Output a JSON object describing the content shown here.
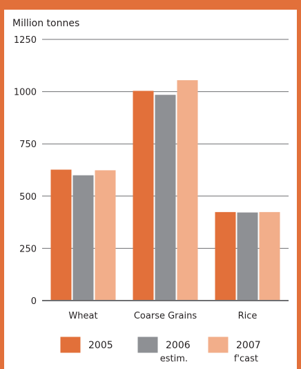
{
  "chart_data": {
    "type": "bar",
    "title": "",
    "ylabel": "Million tonnes",
    "xlabel": "",
    "categories": [
      "Wheat",
      "Coarse Grains",
      "Rice"
    ],
    "ylim": [
      0,
      1250
    ],
    "yticks": [
      0,
      250,
      500,
      750,
      1000,
      1250
    ],
    "grid": true,
    "legend_position": "bottom",
    "series": [
      {
        "name": "2005",
        "name_line2": "",
        "color": "#E2703A",
        "values": [
          625,
          1002,
          422
        ]
      },
      {
        "name": "2006",
        "name_line2": "estim.",
        "color": "#8E9094",
        "values": [
          598,
          983,
          420
        ]
      },
      {
        "name": "2007",
        "name_line2": "f'cast",
        "color": "#F2AE8A",
        "values": [
          622,
          1053,
          422
        ]
      }
    ]
  },
  "colors": {
    "frame": "#E2703A",
    "axis": "#6D6E71",
    "grid": "#6D6E71",
    "text": "#231F20"
  }
}
